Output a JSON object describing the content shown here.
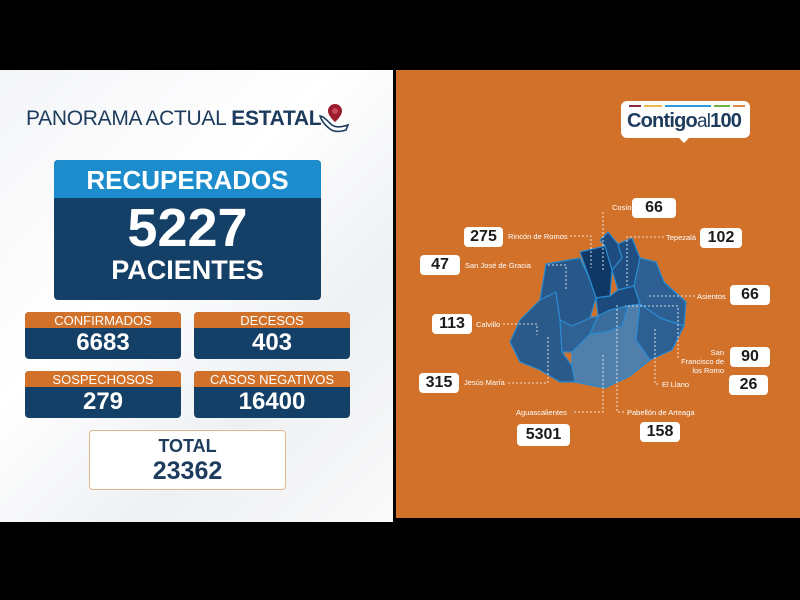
{
  "header": {
    "title_light": "PANORAMA ACTUAL ",
    "title_bold": "ESTATAL",
    "icon": "map-pin-hands-icon"
  },
  "recuperados": {
    "label": "RECUPERADOS",
    "value": "5227",
    "unit": "PACIENTES"
  },
  "stats": [
    {
      "label": "CONFIRMADOS",
      "value": "6683"
    },
    {
      "label": "DECESOS",
      "value": "403"
    },
    {
      "label": "SOSPECHOSOS",
      "value": "279"
    },
    {
      "label": "CASOS NEGATIVOS",
      "value": "16400"
    }
  ],
  "total": {
    "label": "TOTAL",
    "value": "23362"
  },
  "logo": {
    "text_bold": "Contigo",
    "text_light": "al",
    "text_num": "100",
    "stripe_colors": [
      "#8a2a3a",
      "#e8b94a",
      "#2a9ad6",
      "#6db33f",
      "#d98a4a"
    ]
  },
  "colors": {
    "orange": "#d2712a",
    "navy": "#143f66",
    "blue": "#1d8ccc"
  },
  "municipios": [
    {
      "name": "Cosío",
      "value": "66"
    },
    {
      "name": "Rincón de Romos",
      "value": "275"
    },
    {
      "name": "Tepezalá",
      "value": "102"
    },
    {
      "name": "San José de Gracia",
      "value": "47"
    },
    {
      "name": "Asientos",
      "value": "66"
    },
    {
      "name": "Calvillo",
      "value": "113"
    },
    {
      "name": "San Francisco de los Romo",
      "value": "90"
    },
    {
      "name": "Jesús María",
      "value": "315"
    },
    {
      "name": "El Llano",
      "value": "26"
    },
    {
      "name": "Aguascalientes",
      "value": "5301"
    },
    {
      "name": "Pabellón de Arteaga",
      "value": "158"
    }
  ]
}
